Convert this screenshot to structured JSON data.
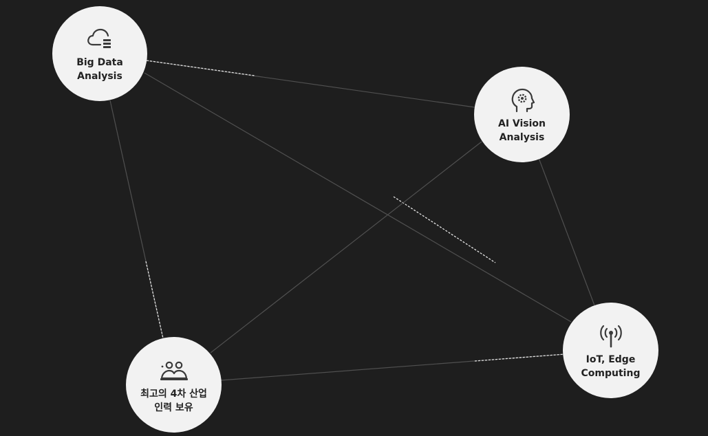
{
  "diagram": {
    "nodes": [
      {
        "id": "big-data",
        "icon": "cloud-database-icon",
        "label_line1": "Big Data",
        "label_line2": "Analysis"
      },
      {
        "id": "ai-vision",
        "icon": "head-gear-icon",
        "label_line1": "AI Vision",
        "label_line2": "Analysis"
      },
      {
        "id": "talent",
        "icon": "people-group-icon",
        "label_line1": "최고의 4차 산업",
        "label_line2": "인력 보유"
      },
      {
        "id": "iot",
        "icon": "antenna-signal-icon",
        "label_line1": "IoT, Edge",
        "label_line2": "Computing"
      }
    ],
    "connections": [
      {
        "from": "big-data",
        "to": "ai-vision",
        "style": "partial-dashed"
      },
      {
        "from": "big-data",
        "to": "iot",
        "style": "partial-dashed"
      },
      {
        "from": "big-data",
        "to": "talent",
        "style": "partial-dashed"
      },
      {
        "from": "ai-vision",
        "to": "talent",
        "style": "solid"
      },
      {
        "from": "ai-vision",
        "to": "iot",
        "style": "solid"
      },
      {
        "from": "talent",
        "to": "iot",
        "style": "partial-dashed"
      }
    ],
    "colors": {
      "background": "#1e1e1e",
      "node_fill": "#f2f2f2",
      "line": "#505050",
      "highlight_line": "#e6e6e6",
      "text": "#222222"
    }
  }
}
